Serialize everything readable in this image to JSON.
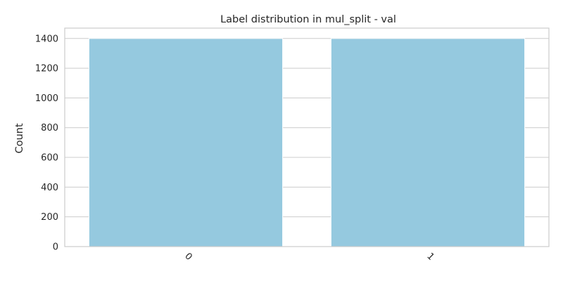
{
  "chart_data": {
    "type": "bar",
    "title": "Label distribution in mul_split - val",
    "xlabel": "",
    "ylabel": "Count",
    "categories": [
      "0",
      "1"
    ],
    "values": [
      1400,
      1400
    ],
    "ylim": [
      0,
      1470
    ],
    "yticks": [
      0,
      200,
      400,
      600,
      800,
      1000,
      1200,
      1400
    ],
    "grid": true,
    "bar_color": "#95c9df",
    "xtick_rotation": 45
  }
}
